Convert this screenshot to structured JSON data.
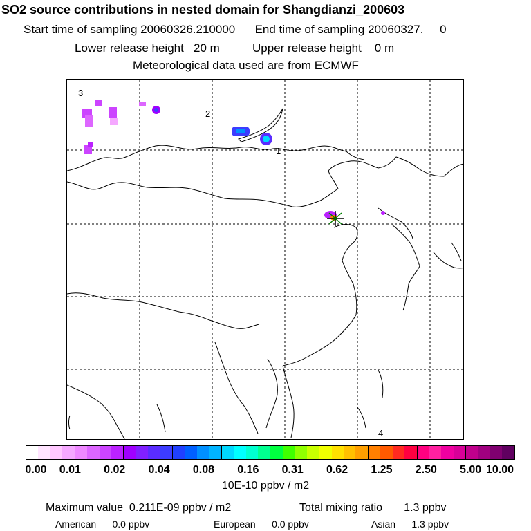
{
  "header": {
    "title": "SO2 source contributions in nested domain for Shangdianzi_200603",
    "start_label": "Start time of sampling",
    "start_value": "20060326.210000",
    "end_label": "End time of sampling",
    "end_value": "20060327.",
    "end_suffix": "0",
    "lower_label": "Lower release height",
    "lower_value": "20 m",
    "upper_label": "Upper release height",
    "upper_value": "0 m",
    "met": "Meteorological data used are from ECMWF"
  },
  "map": {
    "markers": [
      "3",
      "2",
      "1",
      "4"
    ],
    "receptor_icon": "star-cross-marker"
  },
  "legend": {
    "colors": [
      "#ffffff",
      "#ffe4ff",
      "#ffc8ff",
      "#f5a8ff",
      "#ee88ff",
      "#dd66ff",
      "#cc44ff",
      "#bb22ff",
      "#a000ff",
      "#8020ff",
      "#5a2cff",
      "#3c3cff",
      "#2040ff",
      "#0060ff",
      "#0090ff",
      "#00b4ff",
      "#00d8ff",
      "#00ffff",
      "#00ffd0",
      "#00ff90",
      "#00ff40",
      "#40ff00",
      "#90ff00",
      "#c8ff00",
      "#f0ff00",
      "#ffe000",
      "#ffc000",
      "#ffa000",
      "#ff8000",
      "#ff5a00",
      "#ff2a20",
      "#ff0040",
      "#ff0080",
      "#ff20a0",
      "#f000a0",
      "#d80098",
      "#c0008c",
      "#a00080",
      "#800070",
      "#600060"
    ],
    "ticks": [
      "0.00",
      "0.01",
      "0.02",
      "0.04",
      "0.08",
      "0.16",
      "0.31",
      "0.62",
      "1.25",
      "2.50",
      "5.00",
      "10.00"
    ],
    "unit": "10E-10 ppbv / m2"
  },
  "stats": {
    "max_label": "Maximum value",
    "max_value": "0.211E-09 ppbv / m2",
    "total_label": "Total mixing ratio",
    "total_value": "1.3 ppbv",
    "american_label": "American",
    "american_value": "0.0 ppbv",
    "european_label": "European",
    "european_value": "0.0 ppbv",
    "asian_label": "Asian",
    "asian_value": "1.3 ppbv"
  }
}
